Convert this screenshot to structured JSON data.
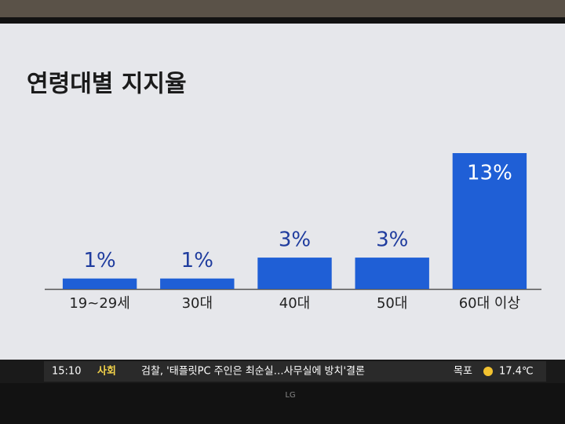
{
  "chart_data": {
    "type": "bar",
    "title": "연령대별 지지율",
    "categories": [
      "19~29세",
      "30대",
      "40대",
      "50대",
      "60대 이상"
    ],
    "values": [
      1,
      1,
      3,
      3,
      13
    ],
    "value_labels": [
      "1%",
      "1%",
      "3%",
      "3%",
      "13%"
    ],
    "color": "#1f5fd6"
  },
  "ticker": {
    "time": "15:10",
    "section": "사회",
    "headline": "검찰, '태플릿PC 주인은 최순실…사무실에 방치'결론",
    "city": "목포",
    "temperature": "17.4℃"
  },
  "brand": "LG"
}
